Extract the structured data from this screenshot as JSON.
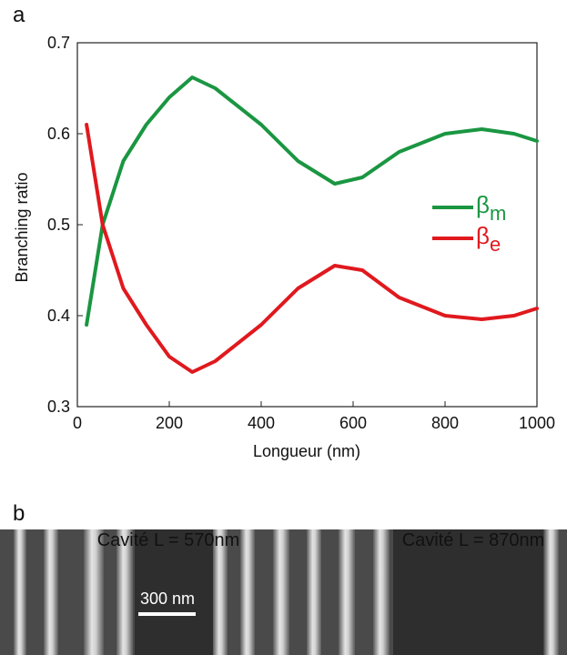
{
  "chart_data": {
    "type": "line",
    "panel_label": "a",
    "x_label": "Longueur (nm)",
    "y_label": "Branching ratio",
    "x": [
      20,
      55,
      100,
      150,
      200,
      250,
      300,
      400,
      480,
      560,
      620,
      700,
      800,
      880,
      950,
      1000
    ],
    "series": [
      {
        "name": "βm",
        "color": "#1a9641",
        "values": [
          0.39,
          0.5,
          0.57,
          0.61,
          0.64,
          0.662,
          0.65,
          0.61,
          0.57,
          0.545,
          0.552,
          0.58,
          0.6,
          0.605,
          0.6,
          0.592
        ]
      },
      {
        "name": "βe",
        "color": "#e0191e",
        "values": [
          0.61,
          0.5,
          0.43,
          0.39,
          0.355,
          0.338,
          0.35,
          0.39,
          0.43,
          0.455,
          0.45,
          0.42,
          0.4,
          0.396,
          0.4,
          0.408
        ]
      }
    ],
    "xlim": [
      0,
      1000
    ],
    "xticks": [
      0,
      200,
      400,
      600,
      800,
      1000
    ],
    "ylim": [
      0.3,
      0.7
    ],
    "yticks": [
      0.3,
      0.4,
      0.5,
      0.6,
      0.7
    ],
    "legend": "right"
  },
  "image_panel": {
    "label": "b",
    "captions": [
      "Cavité L = 570nm",
      "Cavité L = 870nm"
    ],
    "scale_bar": "300 nm"
  }
}
